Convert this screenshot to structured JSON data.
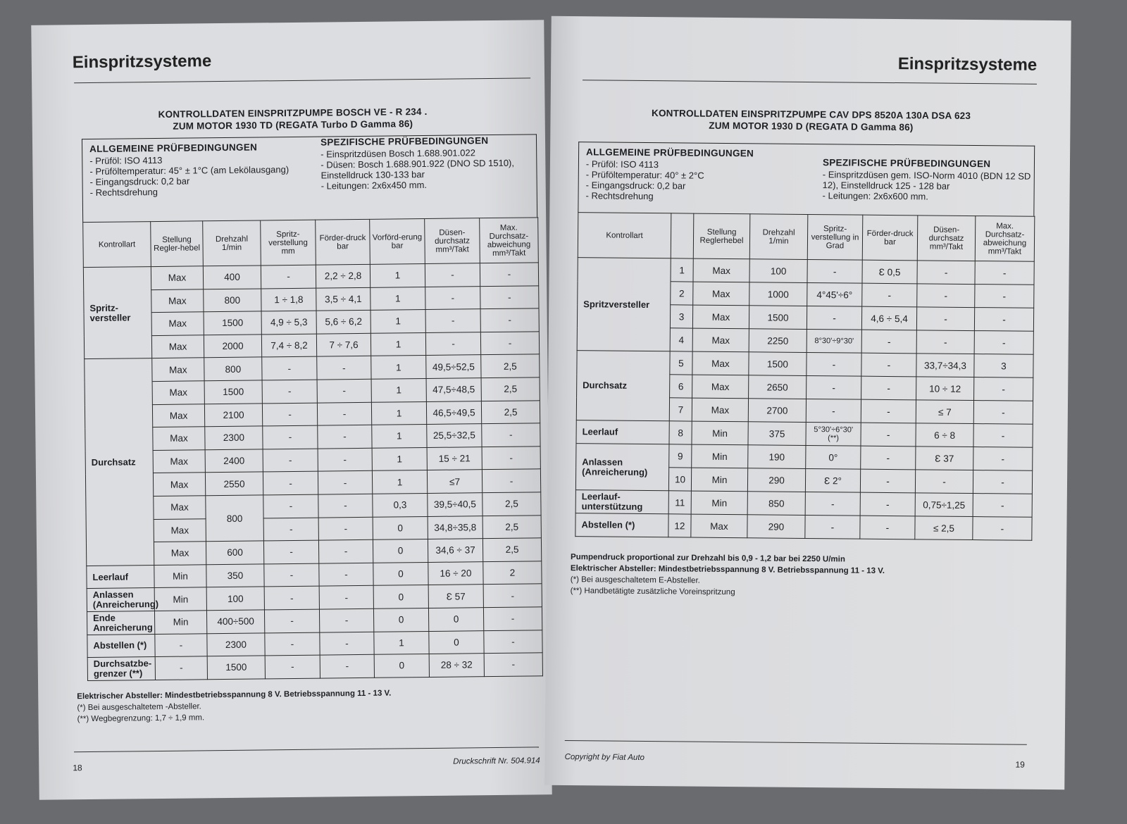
{
  "left_page": {
    "section_title": "Einspritzsysteme",
    "title_line1": "KONTROLLDATEN EINSPRITZPUMPE BOSCH VE - R 234 .",
    "title_line2": "ZUM MOTOR 1930 TD (REGATA Turbo D Gamma 86)",
    "general": {
      "heading": "ALLGEMEINE PRÜFBEDINGUNGEN",
      "items": [
        "Prüföl: ISO 4113",
        "Prüföltemperatur: 45° ± 1°C (am Lekölausgang)",
        "Eingangsdruck: 0,2 bar",
        "Rechtsdrehung"
      ]
    },
    "specific": {
      "heading": "SPEZIFISCHE PRÜFBEDINGUNGEN",
      "items": [
        "Einspritzdüsen Bosch 1.688.901.022",
        "Düsen: Bosch 1.688.901.922 (DNO SD 1510), Einstelldruck 130-133 bar",
        "Leitungen: 2x6x450 mm."
      ]
    },
    "columns": [
      "Kontrollart",
      "Stellung Regler-hebel",
      "Drehzahl 1/min",
      "Spritz-verstellung mm",
      "Förder-druck bar",
      "Vorförd-erung bar",
      "Düsen-durchsatz mm³/Takt",
      "Max. Durchsatz-abweichung mm³/Takt"
    ],
    "groups": [
      {
        "label": "Spritz-versteller",
        "rows": [
          [
            "Max",
            "400",
            "-",
            "2,2 ÷ 2,8",
            "1",
            "-",
            "-"
          ],
          [
            "Max",
            "800",
            "1 ÷ 1,8",
            "3,5 ÷ 4,1",
            "1",
            "-",
            "-"
          ],
          [
            "Max",
            "1500",
            "4,9 ÷ 5,3",
            "5,6 ÷ 6,2",
            "1",
            "-",
            "-"
          ],
          [
            "Max",
            "2000",
            "7,4 ÷ 8,2",
            "7 ÷ 7,6",
            "1",
            "-",
            "-"
          ]
        ]
      },
      {
        "label": "Durchsatz",
        "rows": [
          [
            "Max",
            "800",
            "-",
            "-",
            "1",
            "49,5÷52,5",
            "2,5"
          ],
          [
            "Max",
            "1500",
            "-",
            "-",
            "1",
            "47,5÷48,5",
            "2,5"
          ],
          [
            "Max",
            "2100",
            "-",
            "-",
            "1",
            "46,5÷49,5",
            "2,5"
          ],
          [
            "Max",
            "2300",
            "-",
            "-",
            "1",
            "25,5÷32,5",
            "-"
          ],
          [
            "Max",
            "2400",
            "-",
            "-",
            "1",
            "15 ÷ 21",
            "-"
          ],
          [
            "Max",
            "2550",
            "-",
            "-",
            "1",
            "≤7",
            "-"
          ],
          [
            "Max",
            "800",
            "-",
            "-",
            "0,3",
            "39,5÷40,5",
            "2,5"
          ],
          [
            "Max",
            null,
            "-",
            "-",
            "0",
            "34,8÷35,8",
            "2,5"
          ],
          [
            "Max",
            "600",
            "-",
            "-",
            "0",
            "34,6 ÷ 37",
            "2,5"
          ]
        ]
      },
      {
        "label": "Leerlauf",
        "rows": [
          [
            "Min",
            "350",
            "-",
            "-",
            "0",
            "16 ÷ 20",
            "2"
          ]
        ]
      },
      {
        "label": "Anlassen (Anreicherung)",
        "rows": [
          [
            "Min",
            "100",
            "-",
            "-",
            "0",
            "Ɛ 57",
            "-"
          ]
        ]
      },
      {
        "label": "Ende Anreicherung",
        "rows": [
          [
            "Min",
            "400÷500",
            "-",
            "-",
            "0",
            "0",
            "-"
          ]
        ]
      },
      {
        "label": "Abstellen (*)",
        "rows": [
          [
            "-",
            "2300",
            "-",
            "-",
            "1",
            "0",
            "-"
          ]
        ]
      },
      {
        "label": "Durchsatzbe-grenzer (**)",
        "rows": [
          [
            "-",
            "1500",
            "-",
            "-",
            "0",
            "28 ÷ 32",
            "-"
          ]
        ]
      }
    ],
    "notes": {
      "electric": "Elektrischer Absteller: Mindestbetriebsspannung 8 V. Betriebsspannung 11 - 13 V.",
      "star1": "(*)  Bei ausgeschaltetem -Absteller.",
      "star2": "(**) Wegbegrenzung: 1,7 ÷ 1,9 mm."
    },
    "page_number": "18",
    "print_ref": "Druckschrift Nr. 504.914"
  },
  "right_page": {
    "section_title": "Einspritzsysteme",
    "title_line1": "KONTROLLDATEN EINSPRITZPUMPE CAV DPS 8520A 130A DSA 623",
    "title_line2": "ZUM MOTOR 1930 D (REGATA D Gamma 86)",
    "general": {
      "heading": "ALLGEMEINE PRÜFBEDINGUNGEN",
      "items": [
        "Prüföl: ISO 4113",
        "Prüföltemperatur: 40° ± 2°C",
        "Eingangsdruck: 0,2 bar",
        "Rechtsdrehung"
      ]
    },
    "specific": {
      "heading": "SPEZIFISCHE PRÜFBEDINGUNGEN",
      "items": [
        "Einspritzdüsen gem. ISO-Norm 4010 (BDN 12 SD 12), Einstelldruck 125 - 128 bar",
        "Leitungen: 2x6x600 mm."
      ]
    },
    "columns": [
      "Kontrollart",
      "",
      "Stellung Reglerhebel",
      "Drehzahl 1/min",
      "Spritz-verstellung in Grad",
      "Förder-druck bar",
      "Düsen-durchsatz mm³/Takt",
      "Max. Durchsatz-abweichung mm³/Takt"
    ],
    "groups": [
      {
        "label": "Spritzversteller",
        "rows": [
          [
            "1",
            "Max",
            "100",
            "-",
            "Ɛ 0,5",
            "-",
            "-"
          ],
          [
            "2",
            "Max",
            "1000",
            "4°45'÷6°",
            "-",
            "-",
            "-"
          ],
          [
            "3",
            "Max",
            "1500",
            "-",
            "4,6 ÷ 5,4",
            "-",
            "-"
          ],
          [
            "4",
            "Max",
            "2250",
            "8°30'÷9°30'",
            "-",
            "-",
            "-"
          ]
        ]
      },
      {
        "label": "Durchsatz",
        "rows": [
          [
            "5",
            "Max",
            "1500",
            "-",
            "-",
            "33,7÷34,3",
            "3"
          ],
          [
            "6",
            "Max",
            "2650",
            "-",
            "-",
            "10 ÷ 12",
            "-"
          ],
          [
            "7",
            "Max",
            "2700",
            "-",
            "-",
            "≤ 7",
            "-"
          ]
        ]
      },
      {
        "label": "Leerlauf",
        "rows": [
          [
            "8",
            "Min",
            "375",
            "5°30'÷6°30' (**)",
            "-",
            "6 ÷ 8",
            "-"
          ]
        ]
      },
      {
        "label": "Anlassen (Anreicherung)",
        "rows": [
          [
            "9",
            "Min",
            "190",
            "0°",
            "-",
            "Ɛ 37",
            "-"
          ],
          [
            "10",
            "Min",
            "290",
            "Ɛ 2°",
            "-",
            "-",
            "-"
          ]
        ]
      },
      {
        "label": "Leerlauf-unterstützung",
        "rows": [
          [
            "11",
            "Min",
            "850",
            "-",
            "-",
            "0,75÷1,25",
            "-"
          ]
        ]
      },
      {
        "label": "Abstellen (*)",
        "rows": [
          [
            "12",
            "Max",
            "290",
            "-",
            "-",
            "≤ 2,5",
            "-"
          ]
        ]
      }
    ],
    "notes": {
      "pump": "Pumpendruck proportional zur Drehzahl bis 0,9 - 1,2 bar bei 2250 U/min",
      "electric": "Elektrischer Absteller: Mindestbetriebsspannung 8 V. Betriebsspannung 11 - 13 V.",
      "star1": "(*)  Bei ausgeschaltetem E-Absteller.",
      "star2": "(**) Handbetätigte zusätzliche Voreinspritzung"
    },
    "page_number": "19",
    "copyright": "Copyright by Fiat Auto"
  }
}
